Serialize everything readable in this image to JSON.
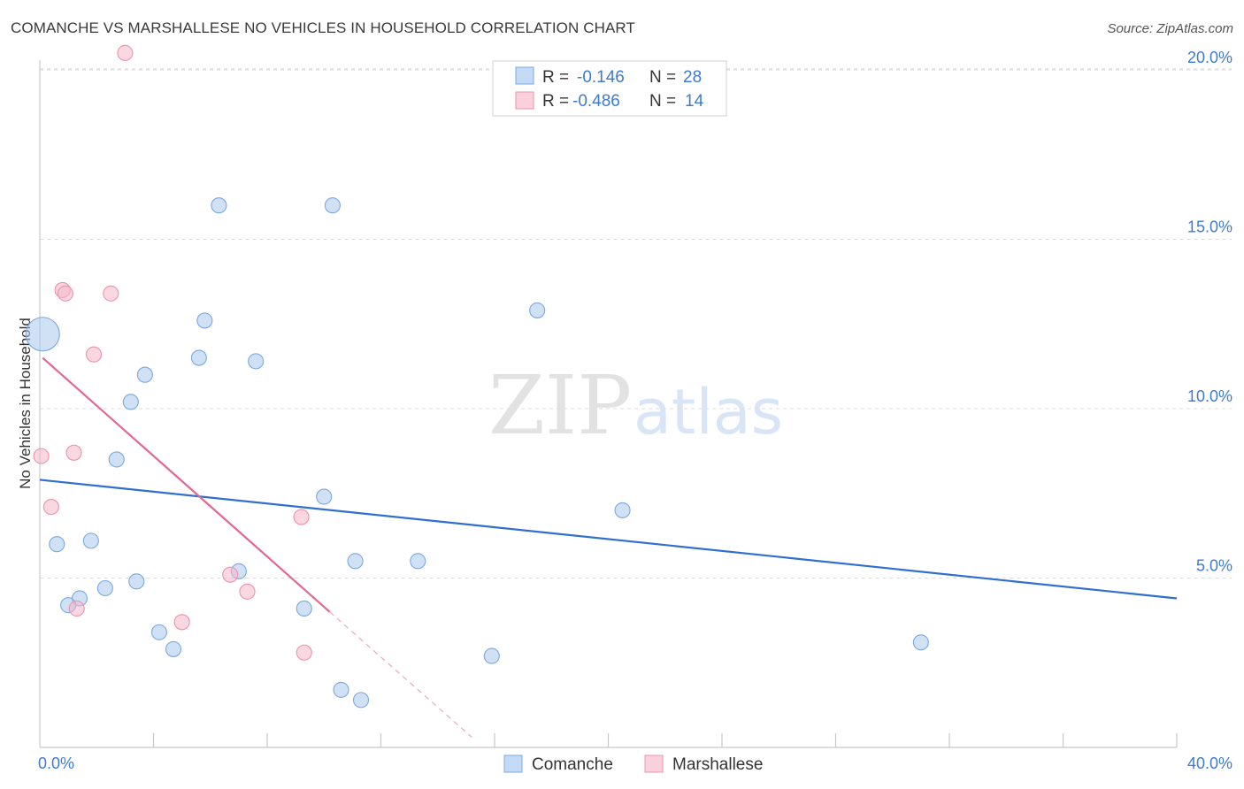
{
  "header": {
    "title": "COMANCHE VS MARSHALLESE NO VEHICLES IN HOUSEHOLD CORRELATION CHART",
    "source": "Source: ZipAtlas.com"
  },
  "watermark": {
    "zip": "ZIP",
    "atlas": "atlas"
  },
  "legend": {
    "rows": [
      {
        "r_label": "R =",
        "r_value": "-0.146",
        "n_label": "N =",
        "n_value": "28",
        "color": "#a9c8ef"
      },
      {
        "r_label": "R =",
        "r_value": "-0.486",
        "n_label": "N =",
        "n_value": "14",
        "color": "#f5b6c8"
      }
    ]
  },
  "chart_data": {
    "type": "scatter",
    "title": "COMANCHE VS MARSHALLESE NO VEHICLES IN HOUSEHOLD CORRELATION CHART",
    "xlabel": "",
    "ylabel": "No Vehicles in Household",
    "xlim": [
      0,
      40
    ],
    "ylim": [
      0,
      20.5
    ],
    "x_tick_labels": [
      {
        "value": 0,
        "label": "0.0%"
      },
      {
        "value": 40,
        "label": "40.0%"
      }
    ],
    "y_tick_labels": [
      {
        "value": 5,
        "label": "5.0%"
      },
      {
        "value": 10,
        "label": "10.0%"
      },
      {
        "value": 15,
        "label": "15.0%"
      },
      {
        "value": 20,
        "label": "20.0%"
      }
    ],
    "series": [
      {
        "name": "Comanche",
        "color": "#a9c8ef",
        "stroke": "#7aa8e0",
        "line_color": "#2f6fd0",
        "trend": {
          "x": [
            0,
            40
          ],
          "y": [
            7.9,
            4.4
          ]
        },
        "points": [
          {
            "x": 0.1,
            "y": 12.2,
            "big": true
          },
          {
            "x": 6.3,
            "y": 16.0
          },
          {
            "x": 10.3,
            "y": 16.0
          },
          {
            "x": 17.5,
            "y": 12.9
          },
          {
            "x": 5.8,
            "y": 12.6
          },
          {
            "x": 5.6,
            "y": 11.5
          },
          {
            "x": 7.6,
            "y": 11.4
          },
          {
            "x": 3.7,
            "y": 11.0
          },
          {
            "x": 3.2,
            "y": 10.2
          },
          {
            "x": 2.7,
            "y": 8.5
          },
          {
            "x": 10.0,
            "y": 7.4
          },
          {
            "x": 20.5,
            "y": 7.0
          },
          {
            "x": 1.8,
            "y": 6.1
          },
          {
            "x": 0.6,
            "y": 6.0
          },
          {
            "x": 11.1,
            "y": 5.5
          },
          {
            "x": 13.3,
            "y": 5.5
          },
          {
            "x": 7.0,
            "y": 5.2
          },
          {
            "x": 3.4,
            "y": 4.9
          },
          {
            "x": 2.3,
            "y": 4.7
          },
          {
            "x": 1.4,
            "y": 4.4
          },
          {
            "x": 1.0,
            "y": 4.2
          },
          {
            "x": 9.3,
            "y": 4.1
          },
          {
            "x": 4.2,
            "y": 3.4
          },
          {
            "x": 4.7,
            "y": 2.9
          },
          {
            "x": 15.9,
            "y": 2.7
          },
          {
            "x": 31.0,
            "y": 3.1
          },
          {
            "x": 10.6,
            "y": 1.7
          },
          {
            "x": 11.3,
            "y": 1.4
          }
        ]
      },
      {
        "name": "Marshallese",
        "color": "#f5b6c8",
        "stroke": "#ec93ad",
        "line_color": "#e2688e",
        "trend": {
          "x": [
            0.1,
            10.2
          ],
          "y": [
            11.5,
            4.0
          ]
        },
        "trend_ext": {
          "x": [
            10.2,
            15.2
          ],
          "y": [
            4.0,
            0.3
          ]
        },
        "points": [
          {
            "x": 3.0,
            "y": 20.5
          },
          {
            "x": 0.8,
            "y": 13.5
          },
          {
            "x": 0.9,
            "y": 13.4
          },
          {
            "x": 2.5,
            "y": 13.4
          },
          {
            "x": 1.9,
            "y": 11.6
          },
          {
            "x": 1.2,
            "y": 8.7
          },
          {
            "x": 0.05,
            "y": 8.6
          },
          {
            "x": 0.4,
            "y": 7.1
          },
          {
            "x": 9.2,
            "y": 6.8
          },
          {
            "x": 6.7,
            "y": 5.1
          },
          {
            "x": 7.3,
            "y": 4.6
          },
          {
            "x": 1.3,
            "y": 4.1
          },
          {
            "x": 5.0,
            "y": 3.7
          },
          {
            "x": 9.3,
            "y": 2.8
          }
        ]
      }
    ],
    "legend_position": "bottom-center",
    "grid": true
  }
}
